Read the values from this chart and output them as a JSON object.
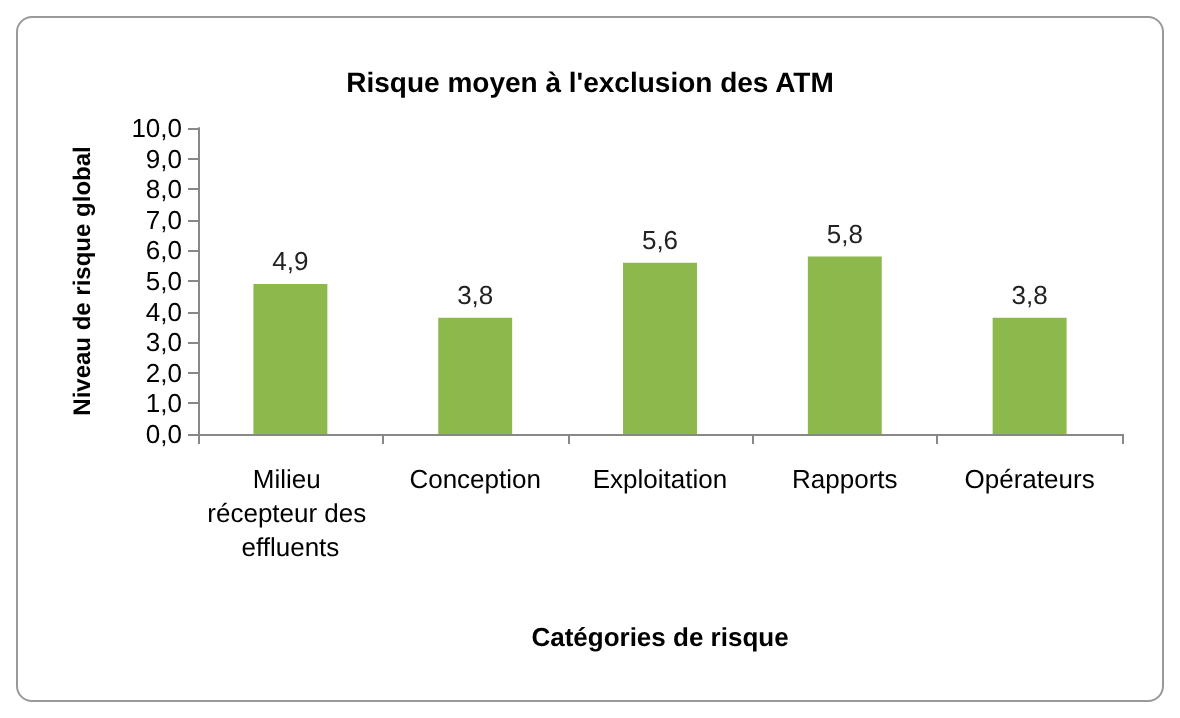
{
  "chart_data": {
    "type": "bar",
    "title": "Risque moyen à l'exclusion des ATM",
    "xlabel": "Catégories de risque",
    "ylabel": "Niveau de risque global",
    "categories": [
      "Milieu récepteur des effluents",
      "Conception",
      "Exploitation",
      "Rapports",
      "Opérateurs"
    ],
    "values": [
      4.9,
      3.8,
      5.6,
      5.8,
      3.8
    ],
    "value_labels": [
      "4,9",
      "3,8",
      "5,6",
      "5,8",
      "3,8"
    ],
    "color": "#8cb84c",
    "ylim": [
      0,
      10
    ],
    "yticks": [
      {
        "value": 0,
        "label": "0,0"
      },
      {
        "value": 1,
        "label": "1,0"
      },
      {
        "value": 2,
        "label": "2,0"
      },
      {
        "value": 3,
        "label": "3,0"
      },
      {
        "value": 4,
        "label": "4,0"
      },
      {
        "value": 5,
        "label": "5,0"
      },
      {
        "value": 6,
        "label": "6,0"
      },
      {
        "value": 7,
        "label": "7,0"
      },
      {
        "value": 8,
        "label": "8,0"
      },
      {
        "value": 9,
        "label": "9,0"
      },
      {
        "value": 10,
        "label": "10,0"
      }
    ],
    "grid": false
  }
}
